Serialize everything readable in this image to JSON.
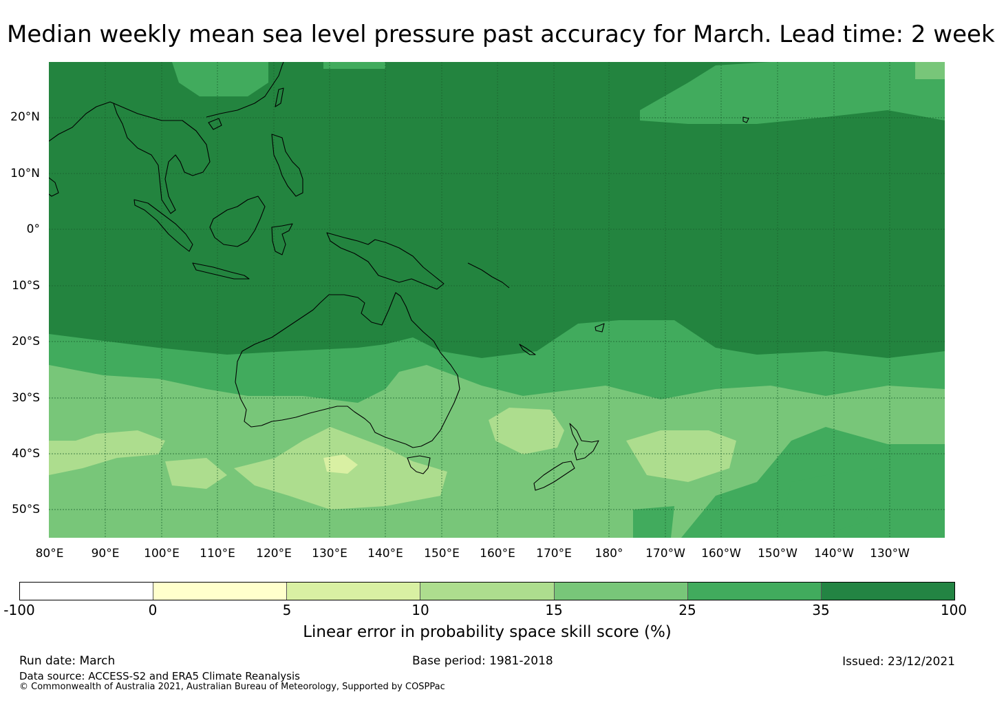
{
  "title": "Median weekly mean sea level pressure past accuracy for March. Lead time: 2 week",
  "map": {
    "lat_labels": [
      "20°N",
      "10°N",
      "0°",
      "10°S",
      "20°S",
      "30°S",
      "40°S",
      "50°S"
    ],
    "lon_labels": [
      "80°E",
      "90°E",
      "100°E",
      "110°E",
      "120°E",
      "130°E",
      "140°E",
      "150°E",
      "160°E",
      "170°E",
      "180°",
      "170°W",
      "160°W",
      "150°W",
      "140°W",
      "130°W"
    ],
    "ocean_base_color": "#23843f",
    "gridlines": true,
    "coastline_color": "#000000"
  },
  "colorbar": {
    "ticks": [
      "-100",
      "0",
      "5",
      "10",
      "15",
      "25",
      "35",
      "100"
    ],
    "colors": [
      "#ffffff",
      "#ffffcc",
      "#d9f0a3",
      "#addd8e",
      "#78c679",
      "#41ab5d",
      "#238443"
    ],
    "label": "Linear error in probability space skill score (%)"
  },
  "footer": {
    "run_date": "Run date: March",
    "base_period": "Base period: 1981-2018",
    "issued": "Issued: 23/12/2021",
    "data_source": "Data source: ACCESS-S2 and ERA5 Climate Reanalysis",
    "copyright": "© Commonwealth of Australia 2021, Australian Bureau of Meteorology, Supported by COSPPac"
  }
}
